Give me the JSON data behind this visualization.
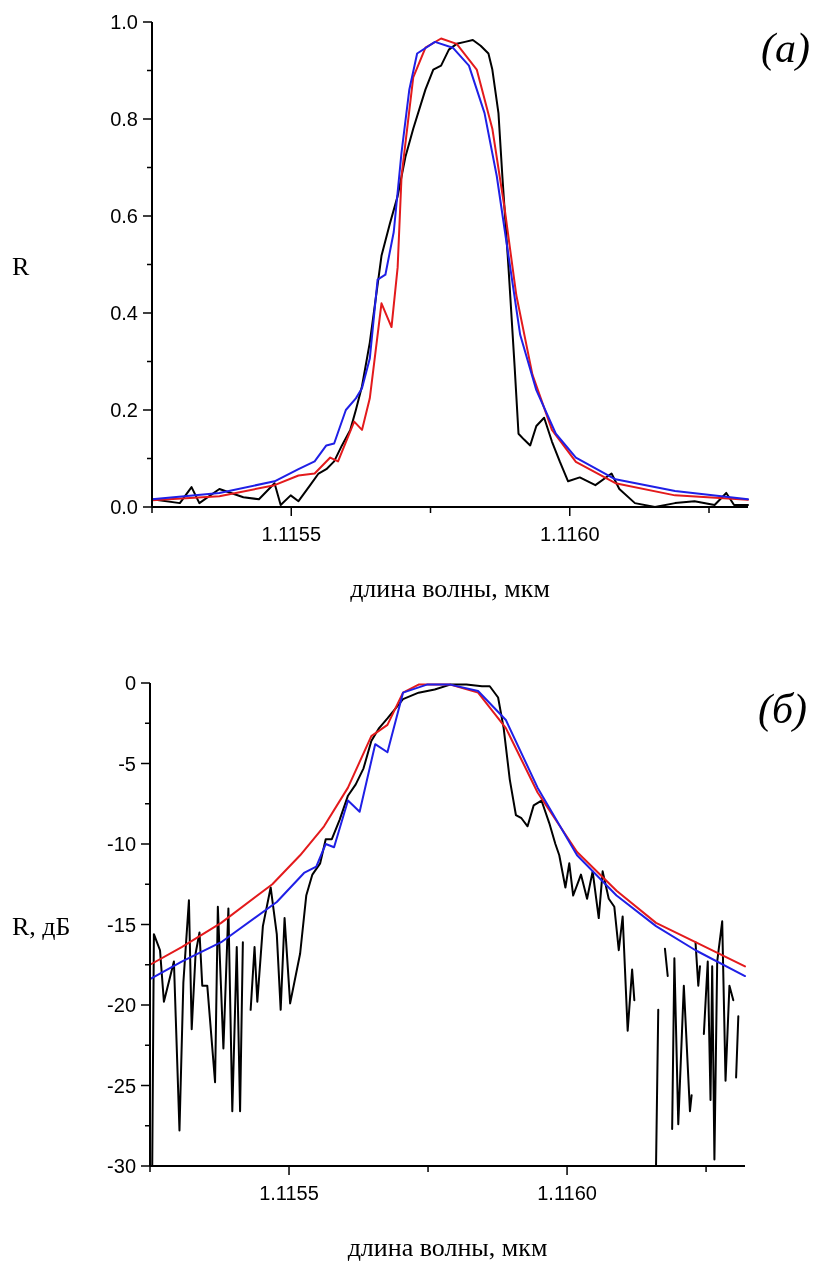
{
  "chart_data": [
    {
      "type": "line",
      "ylabel": "R",
      "xlabel": "длина волны, мкм",
      "annotations": [
        "(a)"
      ],
      "xlim": [
        1.11525,
        1.11632
      ],
      "xticks": [
        {
          "value": 1.11525,
          "label": null
        },
        {
          "value": 1.1155,
          "label": "1.1155"
        },
        {
          "value": 1.11575,
          "label": null
        },
        {
          "value": 1.116,
          "label": "1.1160"
        },
        {
          "value": 1.11625,
          "label": null
        }
      ],
      "ylim": [
        0,
        1
      ],
      "yticks": [
        {
          "value": 0,
          "label": "0.0"
        },
        {
          "value": 0.1,
          "label": null
        },
        {
          "value": 0.2,
          "label": "0.2"
        },
        {
          "value": 0.3,
          "label": null
        },
        {
          "value": 0.4,
          "label": "0.4"
        },
        {
          "value": 0.5,
          "label": null
        },
        {
          "value": 0.6,
          "label": "0.6"
        },
        {
          "value": 0.7,
          "label": null
        },
        {
          "value": 0.8,
          "label": "0.8"
        },
        {
          "value": 0.9,
          "label": null
        },
        {
          "value": 1,
          "label": "1.0"
        }
      ],
      "grid": false,
      "marker": "none",
      "line_style": "solid",
      "series": [
        {
          "color": "#000000",
          "x": [
            1.11525,
            1.1153,
            1.115321,
            1.115335,
            1.115371,
            1.115414,
            1.115442,
            1.11547,
            1.115481,
            1.115499,
            1.115513,
            1.115534,
            1.115549,
            1.115563,
            1.115577,
            1.115591,
            1.115606,
            1.115616,
            1.115627,
            1.115641,
            1.115662,
            1.115677,
            1.115691,
            1.115705,
            1.115719,
            1.115741,
            1.115755,
            1.115769,
            1.115783,
            1.115797,
            1.115812,
            1.115826,
            1.11584,
            1.115854,
            1.115861,
            1.115872,
            1.115879,
            1.11589,
            1.115901,
            1.115908,
            1.115918,
            1.115929,
            1.11594,
            1.115954,
            1.115968,
            1.115982,
            1.115997,
            1.116018,
            1.116046,
            1.116075,
            1.116089,
            1.116117,
            1.116153,
            1.116189,
            1.116224,
            1.11626,
            1.116281,
            1.116295,
            1.11632
          ],
          "values": [
            0.016,
            0.008,
            0.041,
            0.008,
            0.037,
            0.02,
            0.016,
            0.049,
            0.004,
            0.024,
            0.012,
            0.045,
            0.069,
            0.078,
            0.094,
            0.127,
            0.159,
            0.2,
            0.249,
            0.339,
            0.518,
            0.584,
            0.641,
            0.722,
            0.78,
            0.861,
            0.902,
            0.91,
            0.943,
            0.955,
            0.959,
            0.963,
            0.951,
            0.935,
            0.902,
            0.812,
            0.682,
            0.494,
            0.29,
            0.151,
            0.139,
            0.127,
            0.167,
            0.184,
            0.135,
            0.094,
            0.053,
            0.061,
            0.045,
            0.069,
            0.037,
            0.008,
            0,
            0.008,
            0.012,
            0.004,
            0.029,
            0.004,
            0.004
          ]
        },
        {
          "color": "#e31a1c",
          "x": [
            1.11525,
            1.115371,
            1.11547,
            1.115513,
            1.115542,
            1.11557,
            1.115584,
            1.115613,
            1.115627,
            1.115641,
            1.115662,
            1.11568,
            1.115691,
            1.115698,
            1.115719,
            1.115741,
            1.115769,
            1.115797,
            1.115833,
            1.115861,
            1.115883,
            1.115904,
            1.115933,
            1.115968,
            1.116011,
            1.116082,
            1.116189,
            1.11632
          ],
          "values": [
            0.014,
            0.022,
            0.045,
            0.065,
            0.069,
            0.102,
            0.094,
            0.176,
            0.159,
            0.224,
            0.42,
            0.371,
            0.494,
            0.682,
            0.886,
            0.947,
            0.966,
            0.955,
            0.902,
            0.78,
            0.616,
            0.437,
            0.273,
            0.159,
            0.093,
            0.049,
            0.024,
            0.015
          ]
        },
        {
          "color": "#1f1fe6",
          "x": [
            1.11525,
            1.115371,
            1.11547,
            1.115513,
            1.115542,
            1.115563,
            1.115577,
            1.115598,
            1.115616,
            1.115627,
            1.115641,
            1.115655,
            1.115669,
            1.115684,
            1.115698,
            1.115712,
            1.115726,
            1.115758,
            1.11579,
            1.115819,
            1.115847,
            1.115869,
            1.11589,
            1.115911,
            1.11594,
            1.115975,
            1.116011,
            1.116082,
            1.116189,
            1.11632
          ],
          "values": [
            0.016,
            0.029,
            0.053,
            0.078,
            0.094,
            0.127,
            0.131,
            0.2,
            0.224,
            0.245,
            0.306,
            0.469,
            0.479,
            0.567,
            0.731,
            0.861,
            0.935,
            0.959,
            0.947,
            0.91,
            0.812,
            0.682,
            0.518,
            0.355,
            0.241,
            0.151,
            0.102,
            0.057,
            0.033,
            0.016
          ]
        }
      ]
    },
    {
      "type": "line",
      "ylabel": "R, дБ",
      "xlabel": "длина волны, мкм",
      "annotations": [
        "(б)"
      ],
      "xlim": [
        1.11525,
        1.11632
      ],
      "xticks": [
        {
          "value": 1.11525,
          "label": null
        },
        {
          "value": 1.1155,
          "label": "1.1155"
        },
        {
          "value": 1.11575,
          "label": null
        },
        {
          "value": 1.116,
          "label": "1.1160"
        },
        {
          "value": 1.11625,
          "label": null
        }
      ],
      "ylim": [
        -30,
        0
      ],
      "yticks": [
        {
          "value": 0,
          "label": "0"
        },
        {
          "value": -2.5,
          "label": null
        },
        {
          "value": -5,
          "label": "-5"
        },
        {
          "value": -7.5,
          "label": null
        },
        {
          "value": -10,
          "label": "-10"
        },
        {
          "value": -12.5,
          "label": null
        },
        {
          "value": -15,
          "label": "-15"
        },
        {
          "value": -17.5,
          "label": null
        },
        {
          "value": -20,
          "label": "-20"
        },
        {
          "value": -22.5,
          "label": null
        },
        {
          "value": -25,
          "label": "-25"
        },
        {
          "value": -27.5,
          "label": null
        },
        {
          "value": -30,
          "label": "-30"
        }
      ],
      "grid": false,
      "marker": "none",
      "line_style": "solid",
      "series": [
        {
          "color": "#000000",
          "x": [
            1.115254,
            1.115257,
            1.115268,
            1.115275,
            1.115293,
            1.115303,
            1.11531,
            1.11532,
            1.115325,
            1.115332,
            1.115339,
            1.115344,
            1.115353,
            1.115367,
            1.115372,
            1.115382,
            1.115391,
            1.115398,
            1.115406,
            1.115412,
            1.115417,
            1.115424,
            1.115431,
            1.115438,
            1.115443,
            1.115453,
            1.115467,
            1.115478,
            1.115485,
            1.115492,
            1.115502,
            1.11552,
            1.115531,
            1.115542,
            1.115556,
            1.115566,
            1.115577,
            1.115591,
            1.115606,
            1.11562,
            1.115634,
            1.115648,
            1.115662,
            1.115677,
            1.115691,
            1.115705,
            1.115733,
            1.115762,
            1.11579,
            1.115819,
            1.115847,
            1.115861,
            1.115876,
            1.115886,
            1.115897,
            1.115908,
            1.115918,
            1.115929,
            1.11594,
            1.115954,
            1.115968,
            1.115979,
            1.115986,
            1.115997,
            1.116004,
            1.116011,
            1.116025,
            1.116036,
            1.116046,
            1.116057,
            1.116064,
            1.116075,
            1.116085,
            1.116093,
            1.1161,
            1.116109,
            1.116117,
            1.116121,
            1.116139,
            1.11616,
            1.116164,
            1.11617,
            1.116176,
            1.116181,
            1.116185,
            1.116189,
            1.116193,
            1.1162,
            1.11621,
            1.116221,
            1.116224,
            1.116228,
            1.116231,
            1.116236,
            1.116239,
            1.116243,
            1.116246,
            1.116253,
            1.116258,
            1.116261,
            1.116265,
            1.11627,
            1.116279,
            1.116285,
            1.116292,
            1.116299,
            1.116302,
            1.116304,
            1.116308
          ],
          "values": [
            -30,
            -15.6,
            -16.6,
            -19.8,
            -17.3,
            -27.8,
            -18.6,
            -13.5,
            -21.5,
            -16.8,
            -15.5,
            -18.8,
            -18.8,
            -24.8,
            -13.9,
            -22.7,
            -14,
            -26.6,
            -16.4,
            -26.6,
            -16.1,
            null,
            -20.3,
            -16.4,
            -19.8,
            -15.1,
            -12.7,
            -15.6,
            -20.3,
            -14.6,
            -19.9,
            -16.8,
            -13.2,
            -11.9,
            -11.2,
            -9.7,
            -9.7,
            -8.5,
            -7,
            -6.3,
            -5.3,
            -3.6,
            -2.8,
            -2.2,
            -1.6,
            -1,
            -0.6,
            -0.4,
            -0.1,
            -0.1,
            -0.2,
            -0.2,
            -0.9,
            -2.8,
            -6,
            -8.2,
            -8.4,
            -8.9,
            -7.6,
            -7.3,
            -8.7,
            -10,
            -10.7,
            -12.7,
            -11.2,
            -13.2,
            -11.9,
            -13.4,
            -11.7,
            -14.6,
            -11.7,
            -13.4,
            -13.9,
            -16.6,
            -14.5,
            -21.6,
            -17.8,
            -19.7,
            null,
            -30,
            -20.3,
            null,
            -16.5,
            -18.2,
            null,
            -27.7,
            -17.1,
            -27.4,
            -18.8,
            -26.6,
            -25.6,
            null,
            -16.1,
            -18.8,
            -17.6,
            null,
            -21.8,
            -17.3,
            -25.9,
            -17.6,
            -29.6,
            -17.3,
            -14.8,
            -24.7,
            -18.8,
            -19.7,
            null,
            -24.5,
            -20.7
          ]
        },
        {
          "color": "#e31a1c",
          "x": [
            1.11525,
            1.115307,
            1.115378,
            1.11547,
            1.11552,
            1.115563,
            1.115606,
            1.115648,
            1.115677,
            1.115705,
            1.115733,
            1.11579,
            1.11584,
            1.11589,
            1.115947,
            1.116018,
            1.116089,
            1.11616,
            1.116231,
            1.11632
          ],
          "values": [
            -17.5,
            -16.4,
            -14.9,
            -12.5,
            -10.7,
            -8.9,
            -6.5,
            -3.3,
            -2.6,
            -0.6,
            -0.1,
            -0.1,
            -0.6,
            -2.8,
            -6.8,
            -10.5,
            -12.9,
            -14.9,
            -16.1,
            -17.6
          ]
        },
        {
          "color": "#1f1fe6",
          "x": [
            1.11525,
            1.115307,
            1.115378,
            1.115478,
            1.115527,
            1.115549,
            1.115566,
            1.115581,
            1.115606,
            1.115627,
            1.115655,
            1.115677,
            1.115705,
            1.115748,
            1.11579,
            1.11584,
            1.11589,
            1.115947,
            1.116018,
            1.116089,
            1.11616,
            1.116231,
            1.11632
          ],
          "values": [
            -18.4,
            -17.3,
            -16.1,
            -13.6,
            -11.8,
            -11.4,
            -10,
            -10.2,
            -7.3,
            -8,
            -3.8,
            -4.3,
            -0.6,
            -0.1,
            -0.1,
            -0.5,
            -2.3,
            -6.5,
            -10.7,
            -13.2,
            -15.1,
            -16.6,
            -18.2
          ]
        }
      ]
    }
  ]
}
